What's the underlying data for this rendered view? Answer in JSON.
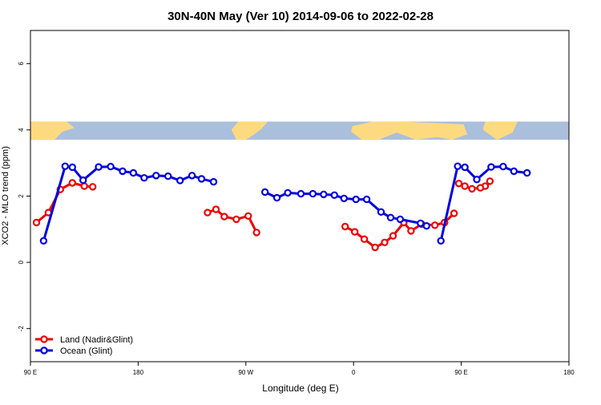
{
  "chart_data": {
    "type": "line",
    "title": "30N-40N May (Ver 10)   2014-09-06 to 2022-02-28",
    "xlabel": "Longitude (deg E)",
    "ylabel": "XCO2 - MLO trend (ppm)",
    "xlim": [
      90,
      540
    ],
    "ylim": [
      -3,
      7
    ],
    "x_ticks": [
      {
        "value": 90,
        "label": "90 E"
      },
      {
        "value": 180,
        "label": "180"
      },
      {
        "value": 270,
        "label": "90 W"
      },
      {
        "value": 360,
        "label": "0"
      },
      {
        "value": 450,
        "label": "90 E"
      },
      {
        "value": 540,
        "label": "180"
      }
    ],
    "y_ticks": [
      {
        "value": -2,
        "label": "-2"
      },
      {
        "value": 0,
        "label": "0"
      },
      {
        "value": 2,
        "label": "2"
      },
      {
        "value": 4,
        "label": "4"
      },
      {
        "value": 6,
        "label": "6"
      }
    ],
    "map_strip": {
      "ymin": 3.7,
      "ymax": 4.25,
      "ocean_color": "#a9bfdc",
      "land_color": "#fdda80"
    },
    "legend_position": "bottom-left",
    "series": [
      {
        "name": "Land (Nadir&Glint)",
        "color": "#ee0000",
        "segments": [
          [
            [
              95,
              1.2
            ],
            [
              105,
              1.5
            ],
            [
              115,
              2.2
            ],
            [
              125,
              2.4
            ],
            [
              135,
              2.3
            ],
            [
              142,
              2.28
            ]
          ],
          [
            [
              238,
              1.5
            ],
            [
              245,
              1.6
            ],
            [
              252,
              1.38
            ],
            [
              262,
              1.3
            ],
            [
              272,
              1.4
            ],
            [
              279,
              0.9
            ]
          ],
          [
            [
              353,
              1.08
            ],
            [
              361,
              0.92
            ],
            [
              369,
              0.7
            ],
            [
              378,
              0.45
            ],
            [
              386,
              0.6
            ],
            [
              393,
              0.8
            ],
            [
              402,
              1.2
            ],
            [
              408,
              0.95
            ],
            [
              417,
              1.15
            ],
            [
              428,
              1.12
            ],
            [
              436,
              1.2
            ],
            [
              444,
              1.48
            ]
          ],
          [
            [
              474,
              2.45
            ],
            [
              470,
              2.3
            ],
            [
              466,
              2.25
            ],
            [
              459,
              2.22
            ],
            [
              453,
              2.3
            ],
            [
              448,
              2.38
            ]
          ]
        ]
      },
      {
        "name": "Ocean (Glint)",
        "color": "#0000dd",
        "segments": [
          [
            [
              101,
              0.65
            ],
            [
              119,
              2.9
            ],
            [
              125,
              2.87
            ],
            [
              134,
              2.48
            ],
            [
              147,
              2.88
            ],
            [
              157,
              2.89
            ],
            [
              167,
              2.75
            ],
            [
              176,
              2.7
            ],
            [
              185,
              2.55
            ],
            [
              195,
              2.62
            ],
            [
              205,
              2.6
            ],
            [
              215,
              2.47
            ],
            [
              225,
              2.62
            ],
            [
              233,
              2.52
            ],
            [
              243,
              2.43
            ]
          ],
          [
            [
              286,
              2.12
            ],
            [
              296,
              1.95
            ],
            [
              305,
              2.1
            ],
            [
              316,
              2.07
            ],
            [
              326,
              2.07
            ],
            [
              335,
              2.05
            ],
            [
              344,
              2.03
            ],
            [
              352,
              1.93
            ],
            [
              362,
              1.9
            ],
            [
              371,
              1.9
            ],
            [
              383,
              1.52
            ],
            [
              391,
              1.35
            ],
            [
              399,
              1.3
            ],
            [
              416,
              1.18
            ],
            [
              421,
              1.1
            ]
          ],
          [
            [
              433,
              0.65
            ],
            [
              447,
              2.9
            ],
            [
              453,
              2.87
            ],
            [
              463,
              2.5
            ],
            [
              475,
              2.88
            ],
            [
              485,
              2.89
            ],
            [
              494,
              2.75
            ],
            [
              505,
              2.7
            ]
          ]
        ]
      }
    ]
  }
}
